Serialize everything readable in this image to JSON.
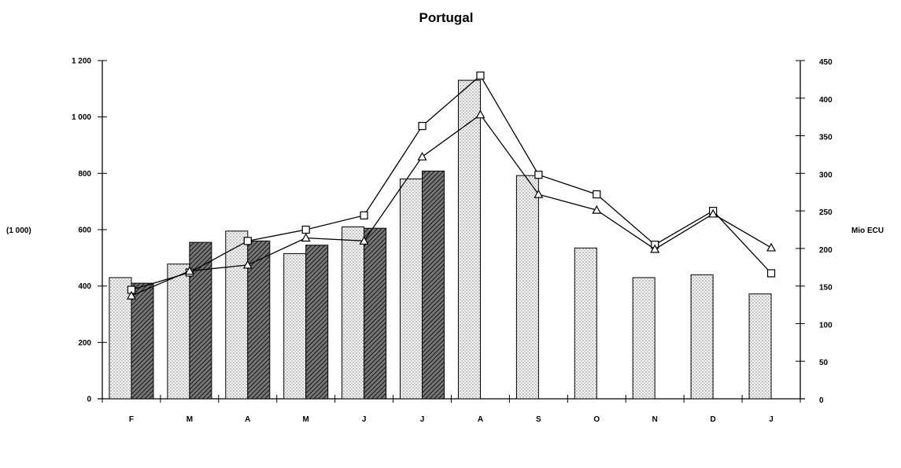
{
  "chart_data": {
    "type": "bar",
    "title": "Portugal",
    "categories": [
      "F",
      "M",
      "A",
      "M",
      "J",
      "J",
      "A",
      "S",
      "O",
      "N",
      "D",
      "J"
    ],
    "y_left": {
      "label": "(1 000)",
      "range": [
        0,
        1200
      ],
      "ticks": [
        0,
        200,
        400,
        600,
        800,
        1000,
        1200
      ],
      "tick_labels": [
        "0",
        "200",
        "400",
        "600",
        "800",
        "1 000",
        "1 200"
      ]
    },
    "y_right": {
      "label": "Mio ECU",
      "range": [
        0,
        450
      ],
      "ticks": [
        0,
        50,
        100,
        150,
        200,
        250,
        300,
        350,
        400,
        450
      ],
      "tick_labels": [
        "0",
        "50",
        "100",
        "150",
        "200",
        "250",
        "300",
        "350",
        "400",
        "450"
      ]
    },
    "bar_series": [
      {
        "axis": "left",
        "style": "dotted",
        "values": [
          430,
          478,
          595,
          515,
          610,
          780,
          1130,
          792,
          535,
          430,
          440,
          372
        ]
      },
      {
        "axis": "left",
        "style": "hatched",
        "values": [
          410,
          555,
          560,
          545,
          605,
          808,
          null,
          null,
          null,
          null,
          null,
          null
        ]
      }
    ],
    "line_series": [
      {
        "axis": "right",
        "marker": "square",
        "values": [
          145,
          168,
          210,
          225,
          244,
          363,
          430,
          298,
          272,
          205,
          250,
          167
        ]
      },
      {
        "axis": "right",
        "marker": "triangle",
        "values": [
          137,
          170,
          178,
          214,
          210,
          322,
          378,
          272,
          251,
          199,
          246,
          201
        ]
      }
    ],
    "legend": "none",
    "grid": false
  }
}
